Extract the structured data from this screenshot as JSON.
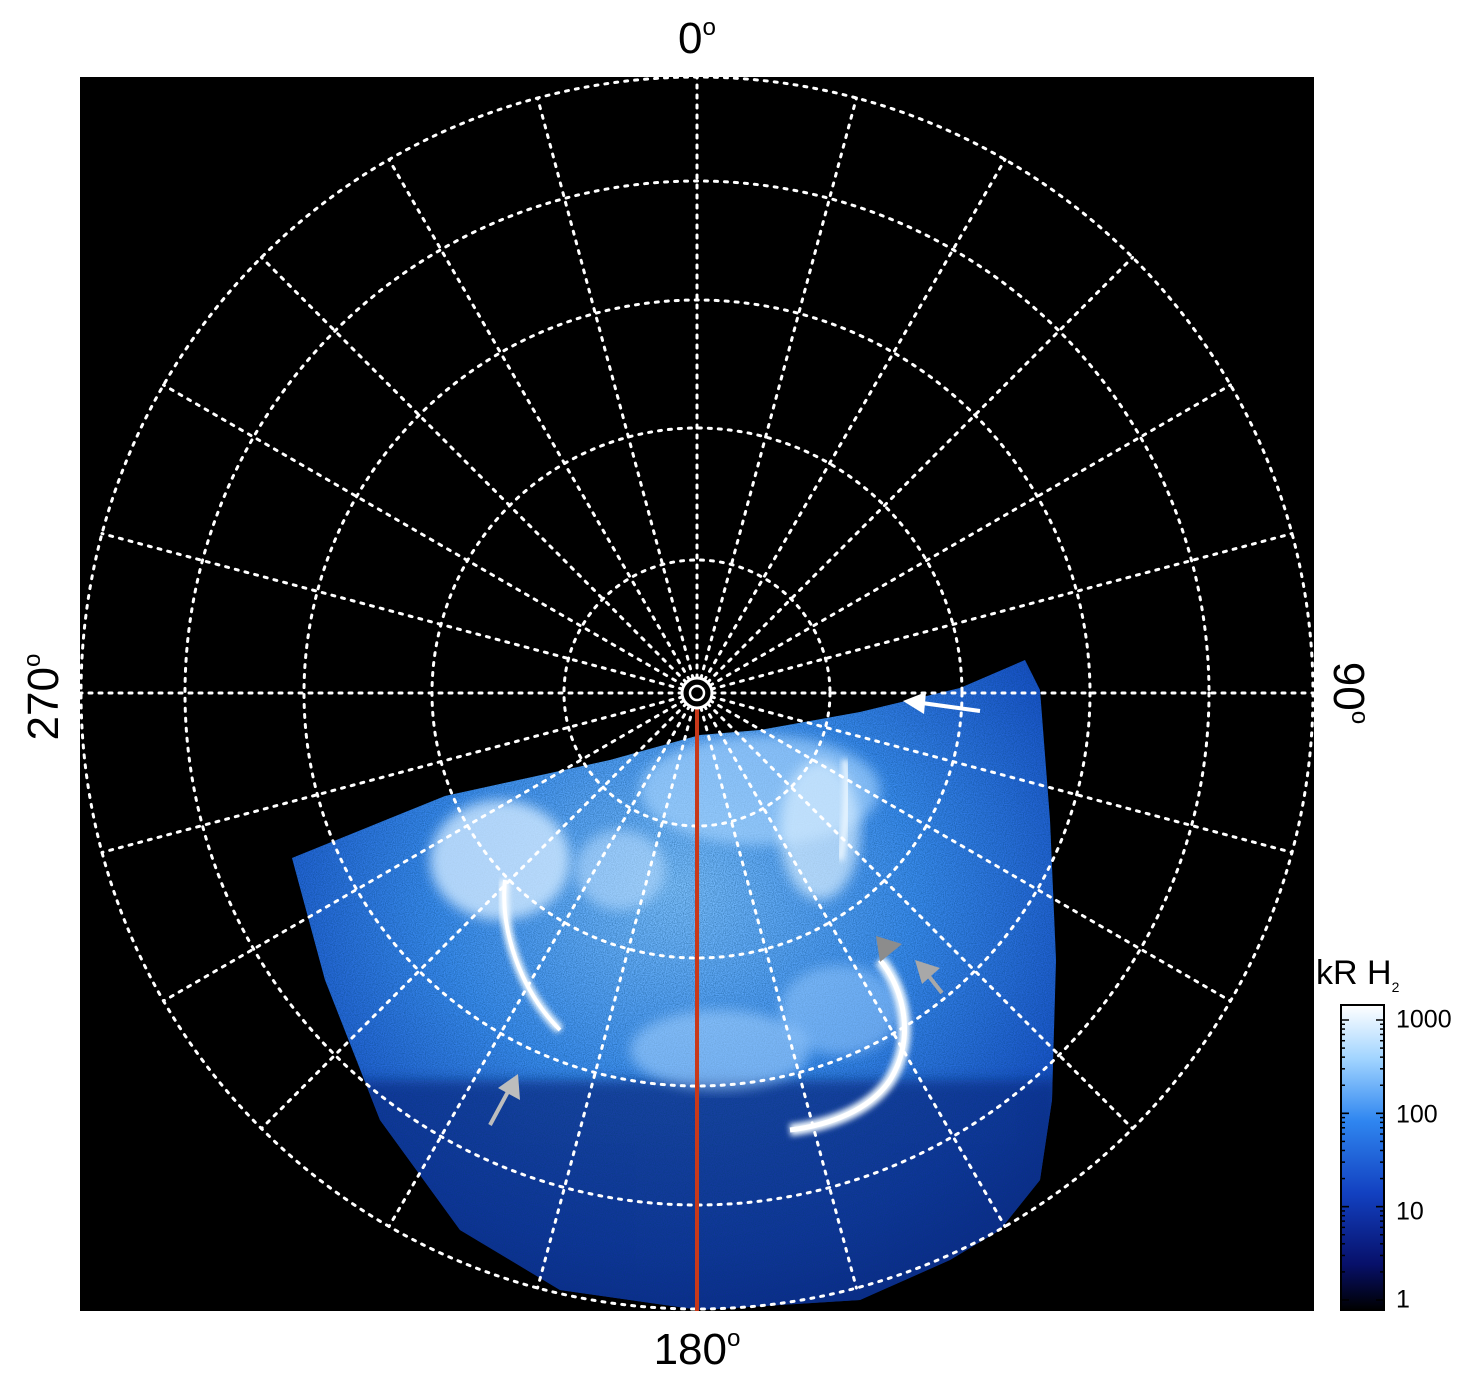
{
  "image": {
    "description_type": "polar-projection auroral emission map",
    "background_color": "#000000",
    "grid_color": "#ffffff",
    "meridian_line_color": "#c8391a",
    "emission_colors": [
      "#0a1a6e",
      "#1f63d6",
      "#4aa0f5",
      "#bfe2ff"
    ]
  },
  "longitude_labels": {
    "top": "0",
    "right": "90",
    "bottom": "180",
    "left": "270",
    "degree_symbol": "o"
  },
  "colorbar": {
    "title_main": "kR H",
    "title_sub": "2",
    "ticks": [
      "1000",
      "100",
      "10",
      "1"
    ],
    "colors": [
      "#ffffff",
      "#9fd3ff",
      "#2f86f0",
      "#1240c0",
      "#07106a",
      "#000000"
    ]
  },
  "annotations": {
    "arrow_colors": [
      "#ffffff",
      "#bdbdbd",
      "#8c8c8c"
    ]
  }
}
